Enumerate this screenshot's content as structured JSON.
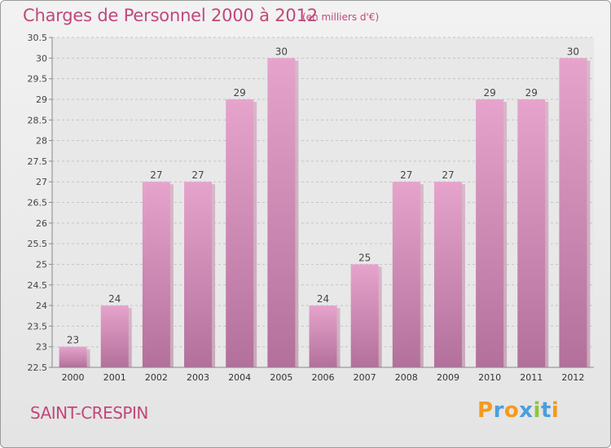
{
  "header": {
    "title": "Charges de Personnel 2000 à 2012",
    "subtitle": "(en milliers d'€)"
  },
  "footer": {
    "town": "SAINT-CRESPIN",
    "brand_letters": [
      {
        "char": "P",
        "color": "#f39a1e"
      },
      {
        "char": "r",
        "color": "#4aa0dc"
      },
      {
        "char": "o",
        "color": "#f39a1e"
      },
      {
        "char": "x",
        "color": "#4aa0dc"
      },
      {
        "char": "i",
        "color": "#8cc63f"
      },
      {
        "char": "t",
        "color": "#4aa0dc"
      },
      {
        "char": "i",
        "color": "#f39a1e"
      }
    ]
  },
  "colors": {
    "accent": "#c0487a",
    "bar_top": "#e6a4cc",
    "bar_bottom": "#b2709b"
  },
  "chart_data": {
    "type": "bar",
    "categories": [
      "2000",
      "2001",
      "2002",
      "2003",
      "2004",
      "2005",
      "2006",
      "2007",
      "2008",
      "2009",
      "2010",
      "2011",
      "2012"
    ],
    "values": [
      23,
      24,
      27,
      27,
      29,
      30,
      24,
      25,
      27,
      27,
      29,
      29,
      30
    ],
    "ylim": [
      22.5,
      30.5
    ],
    "yticks": [
      "22.5",
      "23",
      "23.5",
      "24",
      "24.5",
      "25",
      "25.5",
      "26",
      "26.5",
      "27",
      "27.5",
      "28",
      "28.5",
      "29",
      "29.5",
      "30",
      "30.5"
    ],
    "grid": "horizontal dashed",
    "legend": "none"
  }
}
